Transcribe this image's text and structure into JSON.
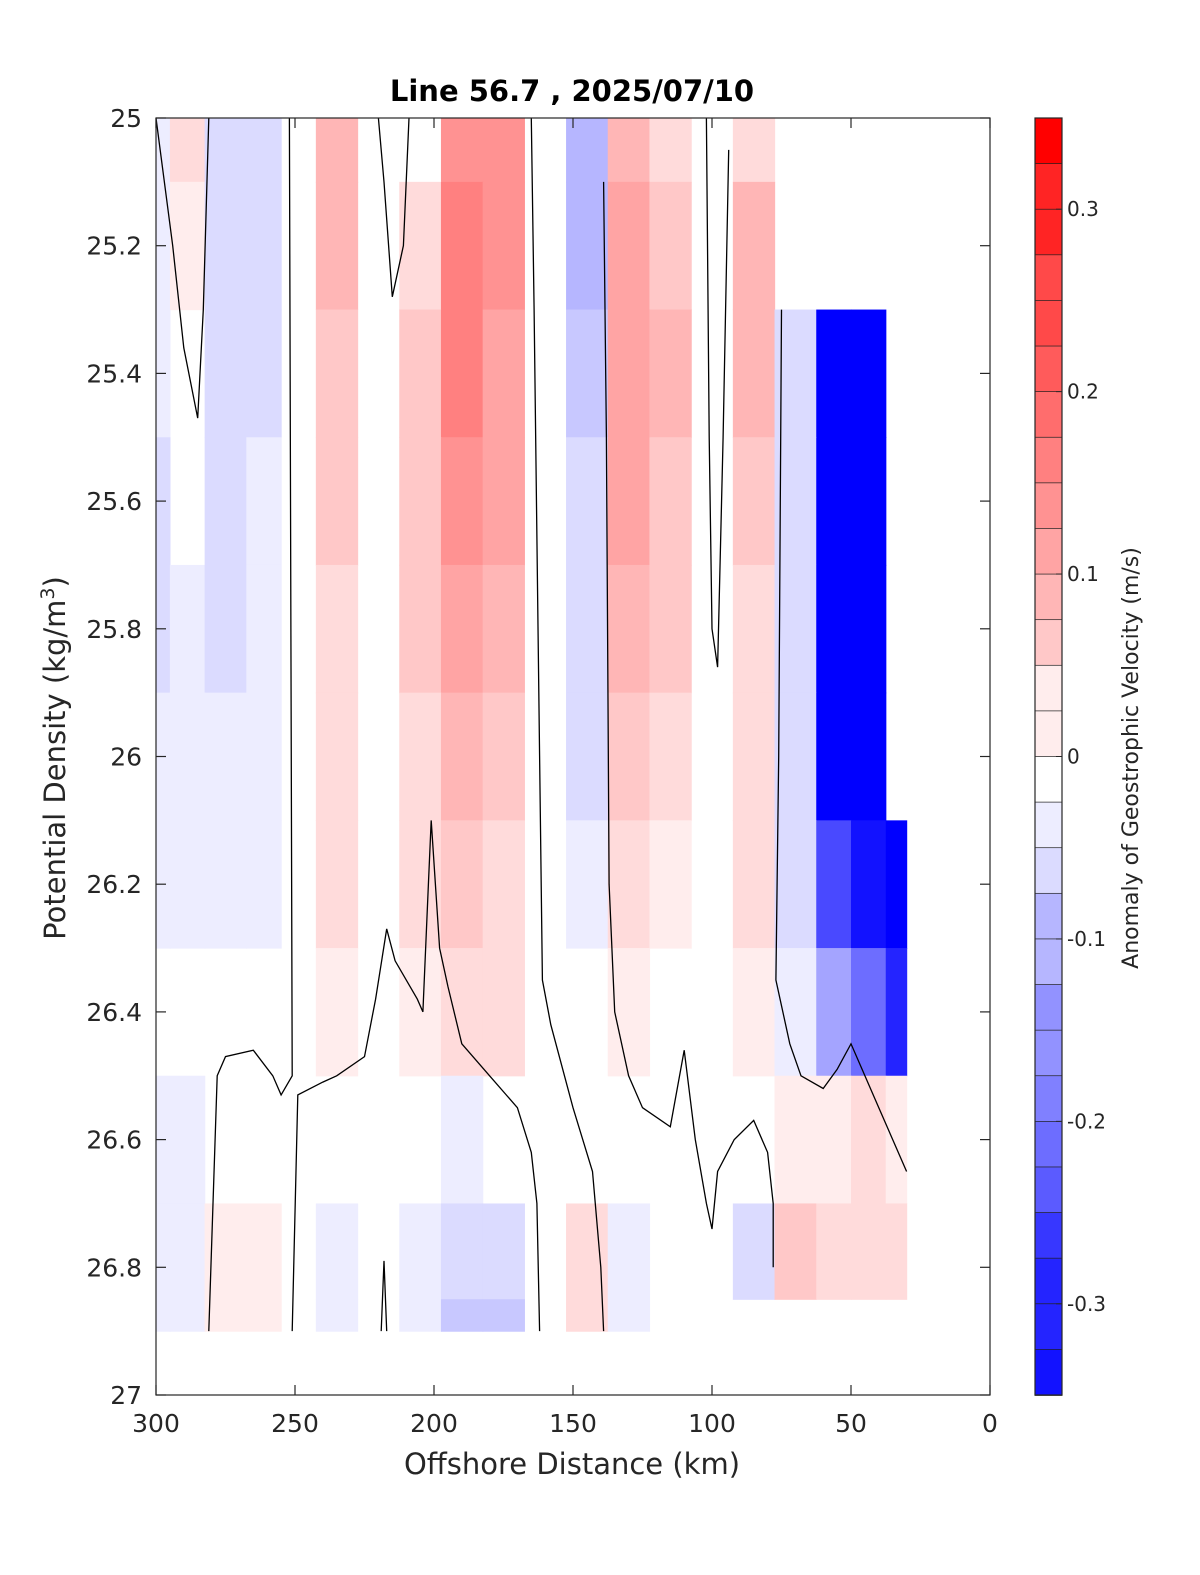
{
  "chart_data": {
    "type": "heatmap",
    "title": "Line 56.7 , 2025/07/10",
    "xlabel": "Offshore Distance (km)",
    "ylabel_main": "Potential Density (kg/m",
    "ylabel_sup": "3",
    "ylabel_close": ")",
    "xlim": [
      300,
      0
    ],
    "ylim": [
      25,
      27
    ],
    "x_ticks": [
      300,
      250,
      200,
      150,
      100,
      50,
      0
    ],
    "x_tick_labels": [
      "300",
      "250",
      "200",
      "150",
      "100",
      "50",
      "0"
    ],
    "y_ticks": [
      25,
      25.2,
      25.4,
      25.6,
      25.8,
      26,
      26.2,
      26.4,
      26.6,
      26.8,
      27
    ],
    "y_tick_labels": [
      "25",
      "25.2",
      "25.4",
      "25.6",
      "25.8",
      "26",
      "26.2",
      "26.4",
      "26.6",
      "26.8",
      "27"
    ],
    "colorbar": {
      "label": "Anomaly of Geostrophic Velocity (m/s)",
      "range": [
        -0.35,
        0.35
      ],
      "ticks": [
        0.3,
        0.2,
        0.1,
        0,
        -0.1,
        -0.2,
        -0.3
      ],
      "tick_labels": [
        "0.3",
        "0.2",
        "0.1",
        "0",
        "-0.1",
        "-0.2",
        "-0.3"
      ],
      "colormap": "blue-white-red",
      "levels": 28
    },
    "x": [
      300,
      290,
      275,
      260,
      250,
      235,
      220,
      205,
      190,
      175,
      160,
      145,
      130,
      115,
      100,
      85,
      70,
      55,
      45,
      30
    ],
    "y": [
      25.0,
      25.2,
      25.4,
      25.6,
      25.8,
      26.0,
      26.2,
      26.4,
      26.6,
      26.8,
      26.9
    ],
    "z_rows": [
      [
        -0.02,
        0.04,
        -0.06,
        -0.04,
        0.0,
        0.09,
        0.0,
        0.0,
        0.16,
        0.16,
        0.0,
        -0.1,
        0.1,
        0.06,
        0.0,
        0.06,
        null,
        null,
        null,
        null
      ],
      [
        -0.02,
        0.02,
        -0.06,
        -0.04,
        0.0,
        0.09,
        0.0,
        0.06,
        0.18,
        0.16,
        0.0,
        -0.1,
        0.12,
        0.08,
        0.0,
        0.1,
        null,
        null,
        null,
        null
      ],
      [
        -0.03,
        0.0,
        -0.06,
        -0.04,
        0.0,
        0.08,
        0.0,
        0.08,
        0.17,
        0.13,
        0.0,
        -0.08,
        0.13,
        0.09,
        0.0,
        0.09,
        -0.04,
        -0.35,
        -0.35,
        null
      ],
      [
        -0.04,
        0.0,
        -0.05,
        -0.03,
        0.0,
        0.07,
        0.0,
        0.08,
        0.15,
        0.12,
        0.0,
        -0.06,
        0.12,
        0.08,
        0.0,
        0.07,
        -0.05,
        -0.35,
        -0.35,
        null
      ],
      [
        -0.04,
        -0.02,
        -0.04,
        -0.03,
        0.0,
        0.06,
        0.0,
        0.07,
        0.12,
        0.1,
        0.0,
        -0.05,
        0.09,
        0.07,
        0.0,
        0.06,
        -0.06,
        -0.35,
        -0.35,
        null
      ],
      [
        -0.03,
        -0.02,
        -0.03,
        -0.02,
        0.0,
        0.05,
        0.0,
        0.06,
        0.1,
        0.08,
        0.0,
        -0.04,
        0.07,
        0.05,
        0.0,
        0.05,
        -0.06,
        -0.34,
        -0.35,
        null
      ],
      [
        -0.02,
        -0.02,
        -0.02,
        -0.02,
        0.0,
        0.04,
        0.0,
        0.04,
        0.08,
        0.06,
        0.0,
        -0.03,
        0.05,
        0.03,
        0.0,
        0.04,
        -0.05,
        -0.25,
        -0.33,
        -0.35
      ],
      [
        0.0,
        0.0,
        0.0,
        0.0,
        0.0,
        0.02,
        0.0,
        0.02,
        0.05,
        0.04,
        0.0,
        -0.01,
        0.02,
        0.01,
        0.0,
        0.03,
        -0.02,
        -0.12,
        -0.2,
        -0.3
      ],
      [
        -0.02,
        -0.02,
        0.0,
        0.0,
        0.0,
        0.0,
        0.0,
        0.0,
        -0.03,
        0.0,
        0.0,
        0.0,
        0.0,
        0.0,
        0.0,
        0.0,
        0.03,
        0.02,
        0.04,
        0.02
      ],
      [
        -0.02,
        -0.02,
        0.03,
        0.03,
        0.0,
        -0.03,
        0.0,
        -0.03,
        -0.06,
        -0.05,
        0.0,
        0.04,
        -0.02,
        -0.01,
        0.0,
        -0.06,
        0.08,
        0.05,
        0.05,
        0.05
      ],
      [
        -0.02,
        -0.02,
        0.03,
        0.03,
        0.0,
        -0.03,
        0.0,
        -0.03,
        -0.08,
        -0.08,
        0.0,
        0.06,
        -0.02,
        -0.01,
        -0.01,
        null,
        null,
        null,
        null,
        null
      ]
    ]
  }
}
